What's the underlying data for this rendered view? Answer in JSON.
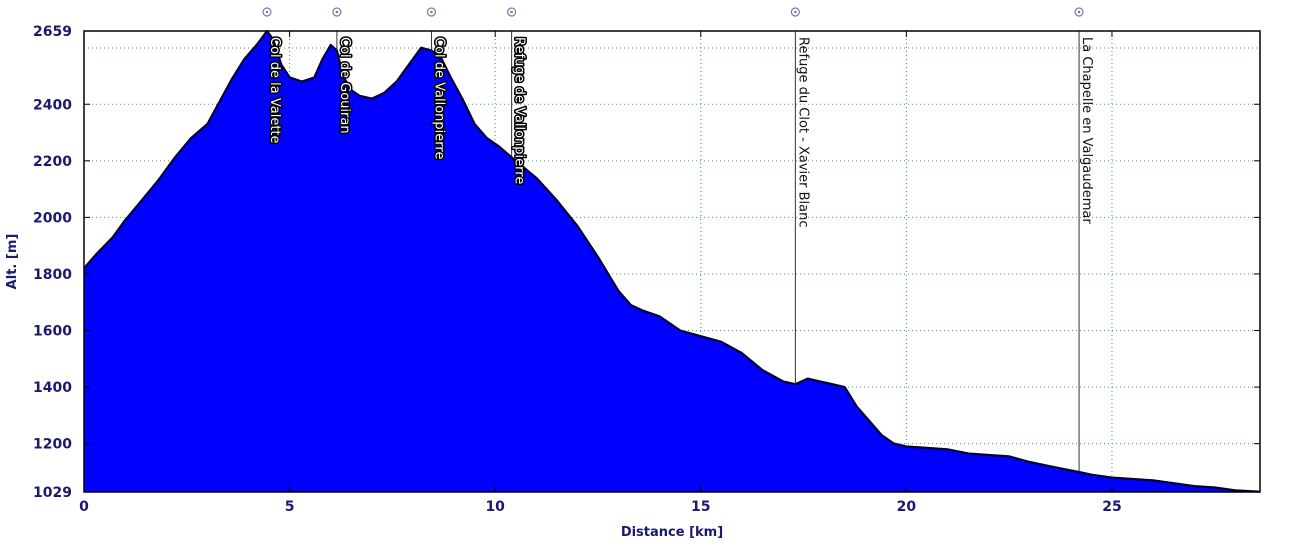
{
  "chart_data": {
    "type": "area",
    "xlabel": "Distance [km]",
    "ylabel": "Alt. [m]",
    "xlim": [
      0,
      28.6
    ],
    "ylim": [
      1029,
      2659
    ],
    "x_ticks": [
      0,
      5,
      10,
      15,
      20,
      25
    ],
    "y_ticks": [
      1029,
      1200,
      1400,
      1600,
      1800,
      2000,
      2200,
      2400,
      2659
    ],
    "grid": true,
    "fill_color": "#0000ff",
    "line_color": "#000033",
    "series": [
      {
        "x": [
          0,
          0.3,
          0.7,
          1.0,
          1.4,
          1.8,
          2.2,
          2.6,
          3.0,
          3.3,
          3.6,
          3.9,
          4.2,
          4.45,
          4.6,
          4.8,
          5.0,
          5.3,
          5.6,
          5.8,
          6.0,
          6.15,
          6.3,
          6.5,
          6.7,
          7.0,
          7.3,
          7.6,
          7.9,
          8.2,
          8.45,
          8.7,
          8.9,
          9.2,
          9.5,
          9.8,
          10.1,
          10.5,
          11.0,
          11.5,
          12.0,
          12.5,
          13.0,
          13.3,
          13.6,
          14.0,
          14.5,
          15.0,
          15.5,
          16.0,
          16.5,
          17.0,
          17.3,
          17.6,
          17.9,
          18.2,
          18.5,
          18.8,
          19.1,
          19.4,
          19.7,
          20.0,
          20.5,
          21.0,
          21.5,
          22.0,
          22.5,
          23.0,
          23.5,
          24.0,
          24.2,
          24.5,
          25.0,
          25.5,
          26.0,
          26.5,
          27.0,
          27.5,
          28.0,
          28.6
        ],
        "y": [
          1820,
          1870,
          1930,
          1990,
          2060,
          2130,
          2210,
          2280,
          2330,
          2410,
          2490,
          2560,
          2610,
          2659,
          2630,
          2540,
          2495,
          2480,
          2495,
          2560,
          2610,
          2590,
          2500,
          2450,
          2430,
          2420,
          2440,
          2480,
          2540,
          2600,
          2590,
          2560,
          2500,
          2420,
          2330,
          2280,
          2250,
          2200,
          2140,
          2060,
          1970,
          1860,
          1740,
          1690,
          1670,
          1650,
          1600,
          1580,
          1560,
          1520,
          1460,
          1420,
          1410,
          1430,
          1420,
          1410,
          1400,
          1330,
          1280,
          1230,
          1200,
          1190,
          1185,
          1180,
          1165,
          1160,
          1155,
          1135,
          1120,
          1105,
          1100,
          1090,
          1080,
          1075,
          1070,
          1060,
          1050,
          1045,
          1035,
          1030
        ]
      }
    ],
    "waypoints": [
      {
        "x": 4.45,
        "label": "Col de la Valette",
        "halo": true
      },
      {
        "x": 6.15,
        "label": "Col de Gouiran",
        "halo": true
      },
      {
        "x": 8.45,
        "label": "Col de Vallonpierre",
        "halo": true
      },
      {
        "x": 10.4,
        "label": "Refuge de Vallonpierre",
        "halo": true
      },
      {
        "x": 17.3,
        "label": "Refuge du Clot - Xavier Blanc",
        "halo": false
      },
      {
        "x": 24.2,
        "label": "La Chapelle en Valgaudemar",
        "halo": false
      }
    ]
  }
}
